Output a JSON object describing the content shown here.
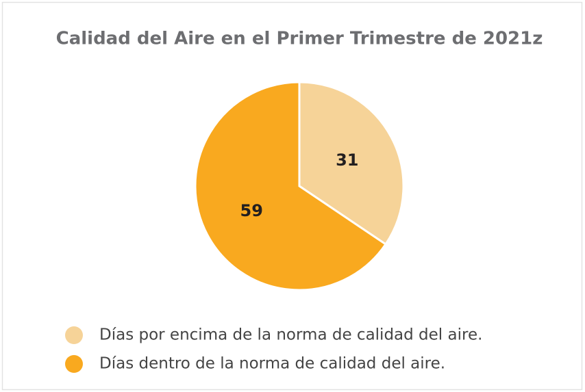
{
  "chart_data": {
    "type": "pie",
    "title": "Calidad del Aire en el Primer Trimestre de 2021z",
    "categories": [
      "Días por encima de la norma de calidad del aire.",
      "Días dentro de la norma de calidad del aire."
    ],
    "values": [
      31,
      59
    ],
    "colors": [
      "#f6d398",
      "#f9a91f"
    ]
  }
}
